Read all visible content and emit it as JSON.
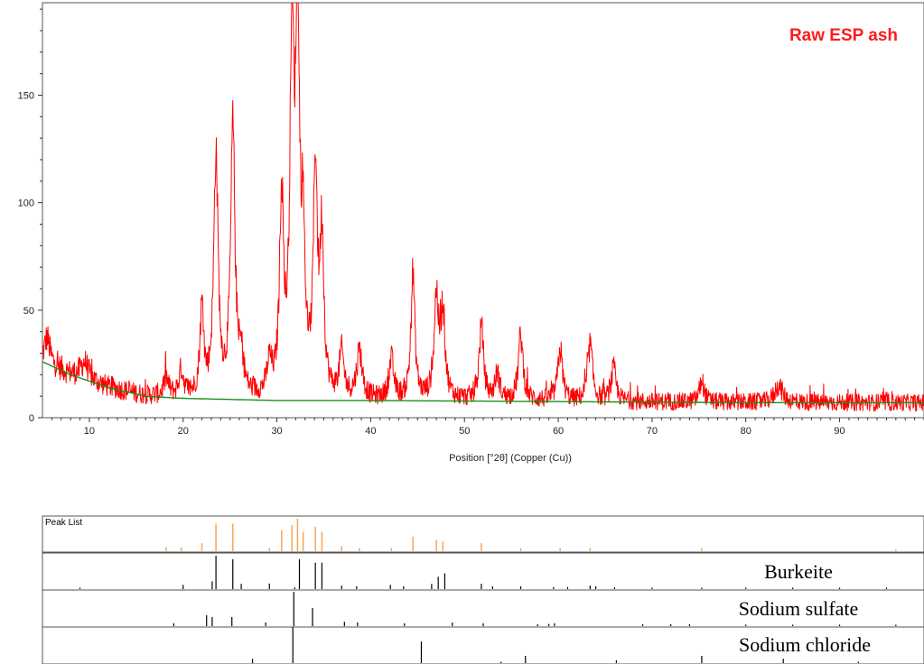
{
  "chart_data": {
    "type": "line",
    "title": "Raw ESP ash",
    "xlabel": "Position [°2θ] (Copper (Cu))",
    "ylabel": "",
    "xlim": [
      5,
      99
    ],
    "ylim": [
      0,
      193
    ],
    "xticks": [
      10,
      20,
      30,
      40,
      50,
      60,
      70,
      80,
      90
    ],
    "yticks": [
      0,
      50,
      100,
      150
    ],
    "grid": false,
    "colors": {
      "pattern": "#ff0000",
      "background_fit": "#1a8f1a",
      "peak_list": "#f5a65b",
      "reference": "#000000"
    },
    "background": [
      [
        5,
        26
      ],
      [
        8,
        20
      ],
      [
        12,
        14
      ],
      [
        16,
        10
      ],
      [
        20,
        9
      ],
      [
        30,
        8
      ],
      [
        40,
        8
      ],
      [
        60,
        7.5
      ],
      [
        80,
        7
      ],
      [
        99,
        7
      ]
    ],
    "peaks": [
      [
        5.5,
        12,
        0.35
      ],
      [
        9.5,
        8,
        0.5
      ],
      [
        18.2,
        8,
        0.3
      ],
      [
        19.8,
        12,
        0.3
      ],
      [
        22.0,
        40,
        0.25
      ],
      [
        23.5,
        112,
        0.28
      ],
      [
        25.3,
        124,
        0.28
      ],
      [
        26.2,
        15,
        0.3
      ],
      [
        29.2,
        14,
        0.3
      ],
      [
        30.5,
        92,
        0.25
      ],
      [
        31.6,
        160,
        0.25
      ],
      [
        32.2,
        177,
        0.25
      ],
      [
        32.8,
        60,
        0.25
      ],
      [
        34.1,
        105,
        0.25
      ],
      [
        34.8,
        72,
        0.25
      ],
      [
        36.9,
        20,
        0.3
      ],
      [
        38.8,
        22,
        0.35
      ],
      [
        42.2,
        18,
        0.3
      ],
      [
        44.5,
        58,
        0.25
      ],
      [
        47.0,
        46,
        0.28
      ],
      [
        47.7,
        40,
        0.28
      ],
      [
        51.8,
        34,
        0.28
      ],
      [
        53.5,
        12,
        0.3
      ],
      [
        56.0,
        30,
        0.3
      ],
      [
        60.2,
        24,
        0.3
      ],
      [
        63.4,
        26,
        0.3
      ],
      [
        65.9,
        15,
        0.3
      ],
      [
        75.3,
        10,
        0.3
      ],
      [
        83.5,
        8,
        0.5
      ]
    ],
    "peak_list": {
      "label": "Peak List",
      "lines": [
        [
          18.2,
          0.12
        ],
        [
          19.8,
          0.12
        ],
        [
          22.0,
          0.25
        ],
        [
          23.5,
          0.85
        ],
        [
          25.3,
          0.85
        ],
        [
          29.2,
          0.1
        ],
        [
          30.5,
          0.65
        ],
        [
          31.6,
          0.8
        ],
        [
          32.2,
          1.0
        ],
        [
          32.8,
          0.6
        ],
        [
          34.1,
          0.75
        ],
        [
          34.8,
          0.6
        ],
        [
          36.9,
          0.15
        ],
        [
          38.8,
          0.1
        ],
        [
          42.2,
          0.1
        ],
        [
          44.5,
          0.45
        ],
        [
          47.0,
          0.35
        ],
        [
          47.7,
          0.3
        ],
        [
          51.8,
          0.25
        ],
        [
          56.0,
          0.1
        ],
        [
          60.2,
          0.1
        ],
        [
          63.4,
          0.1
        ],
        [
          75.3,
          0.1
        ],
        [
          96.0,
          0.05
        ]
      ]
    },
    "reference_patterns": [
      {
        "name": "Burkeite",
        "lines": [
          [
            9.0,
            0.04
          ],
          [
            20.0,
            0.12
          ],
          [
            23.1,
            0.22
          ],
          [
            23.5,
            0.95
          ],
          [
            25.3,
            0.85
          ],
          [
            26.2,
            0.15
          ],
          [
            29.2,
            0.16
          ],
          [
            31.9,
            0.05
          ],
          [
            32.4,
            0.85
          ],
          [
            34.1,
            0.75
          ],
          [
            34.8,
            0.75
          ],
          [
            36.9,
            0.1
          ],
          [
            38.5,
            0.08
          ],
          [
            42.1,
            0.12
          ],
          [
            43.5,
            0.08
          ],
          [
            46.5,
            0.15
          ],
          [
            47.2,
            0.35
          ],
          [
            47.9,
            0.45
          ],
          [
            51.8,
            0.15
          ],
          [
            53.0,
            0.08
          ],
          [
            56.0,
            0.08
          ],
          [
            59.5,
            0.06
          ],
          [
            61.0,
            0.06
          ],
          [
            63.4,
            0.1
          ],
          [
            64.0,
            0.08
          ],
          [
            66.0,
            0.05
          ],
          [
            70.0,
            0.04
          ],
          [
            75.3,
            0.04
          ],
          [
            80.0,
            0.04
          ],
          [
            85.0,
            0.04
          ],
          [
            90.0,
            0.04
          ],
          [
            95.0,
            0.04
          ]
        ]
      },
      {
        "name": "Sodium sulfate",
        "lines": [
          [
            19.0,
            0.08
          ],
          [
            22.5,
            0.3
          ],
          [
            23.1,
            0.25
          ],
          [
            25.2,
            0.25
          ],
          [
            28.8,
            0.1
          ],
          [
            31.8,
            0.95
          ],
          [
            33.8,
            0.5
          ],
          [
            37.2,
            0.12
          ],
          [
            38.6,
            0.1
          ],
          [
            43.6,
            0.08
          ],
          [
            48.7,
            0.1
          ],
          [
            52.0,
            0.08
          ],
          [
            57.8,
            0.05
          ],
          [
            59.0,
            0.06
          ],
          [
            59.6,
            0.08
          ],
          [
            69.0,
            0.05
          ],
          [
            72.0,
            0.05
          ],
          [
            74.0,
            0.05
          ],
          [
            80.0,
            0.04
          ],
          [
            85.0,
            0.04
          ],
          [
            90.0,
            0.04
          ],
          [
            96.0,
            0.04
          ]
        ]
      },
      {
        "name": "Sodium chloride",
        "lines": [
          [
            27.4,
            0.12
          ],
          [
            31.7,
            1.0
          ],
          [
            45.4,
            0.6
          ],
          [
            53.9,
            0.03
          ],
          [
            56.5,
            0.2
          ],
          [
            66.2,
            0.08
          ],
          [
            75.3,
            0.2
          ],
          [
            84.0,
            0.12
          ],
          [
            92.0,
            0.03
          ]
        ]
      }
    ]
  }
}
